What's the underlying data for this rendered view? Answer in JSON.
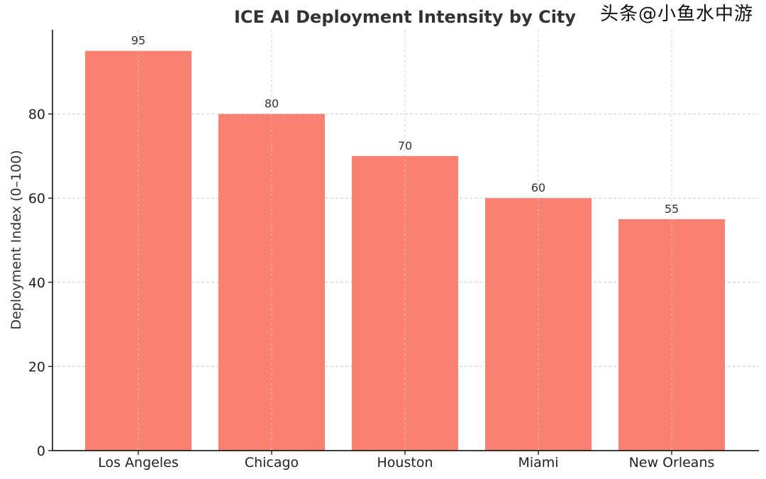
{
  "chart_data": {
    "type": "bar",
    "title": "ICE AI Deployment Intensity by City",
    "xlabel": "",
    "ylabel": "Deployment Index (0–100)",
    "categories": [
      "Los Angeles",
      "Chicago",
      "Houston",
      "Miami",
      "New Orleans"
    ],
    "values": [
      95,
      80,
      70,
      60,
      55
    ],
    "data_labels": [
      "95",
      "80",
      "70",
      "60",
      "55"
    ],
    "ylim": [
      0,
      100
    ],
    "yticks": [
      0,
      20,
      40,
      60,
      80
    ],
    "grid": true,
    "bar_color": "#FA8072"
  },
  "watermark": "头条@小鱼水中游"
}
